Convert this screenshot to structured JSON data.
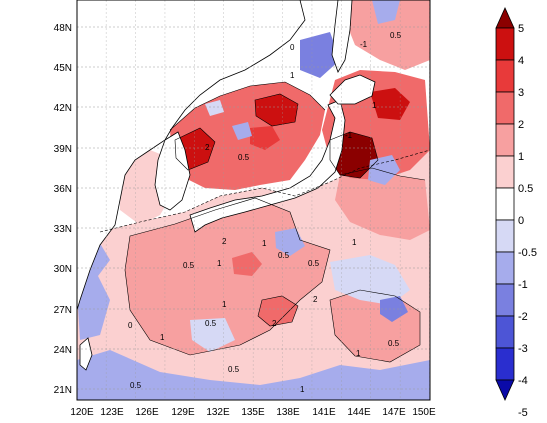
{
  "lat_labels": [
    "48N",
    "45N",
    "42N",
    "39N",
    "36N",
    "33N",
    "30N",
    "27N",
    "24N",
    "21N"
  ],
  "lon_labels": [
    "120E",
    "123E",
    "126E",
    "129E",
    "132E",
    "135E",
    "138E",
    "141E",
    "144E",
    "147E",
    "150E"
  ],
  "colorbar": {
    "labels": [
      "5",
      "4",
      "3",
      "2",
      "1",
      "0.5",
      "0",
      "-0.5",
      "-1",
      "-2",
      "-3",
      "-4",
      "-5"
    ],
    "colors": [
      "#8b0000",
      "#cc1010",
      "#e83a3a",
      "#f06a6a",
      "#f7a0a0",
      "#fbd0d0",
      "#ffffff",
      "#d6d9f5",
      "#a6acec",
      "#7a80e0",
      "#4d55d6",
      "#2a2ecf",
      "#0a0aa8"
    ]
  },
  "contour_labels": [
    {
      "text": "2"
    },
    {
      "text": "1"
    },
    {
      "text": "0.5"
    },
    {
      "text": "2"
    },
    {
      "text": "1"
    },
    {
      "text": "0.5"
    },
    {
      "text": "1"
    },
    {
      "text": "2"
    },
    {
      "text": "1"
    },
    {
      "text": "0.5"
    },
    {
      "text": "-1"
    },
    {
      "text": "0"
    },
    {
      "text": "1"
    },
    {
      "text": "0.5"
    },
    {
      "text": "1"
    },
    {
      "text": "2"
    },
    {
      "text": "0.5"
    },
    {
      "text": "1"
    },
    {
      "text": "0"
    },
    {
      "text": "0.5"
    },
    {
      "text": "-1"
    },
    {
      "text": "0.5"
    },
    {
      "text": "1"
    },
    {
      "text": "0.5"
    },
    {
      "text": "0.5"
    },
    {
      "text": "1"
    }
  ]
}
